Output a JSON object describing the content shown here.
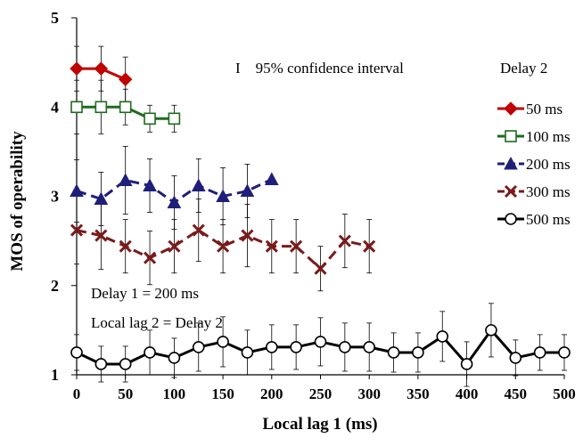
{
  "chart_data": {
    "type": "line",
    "xlabel": "Local lag 1 (ms)",
    "ylabel": "MOS of operability",
    "xlim": [
      0,
      500
    ],
    "ylim": [
      1,
      5
    ],
    "xticks": [
      0,
      50,
      100,
      150,
      200,
      250,
      300,
      350,
      400,
      450,
      500
    ],
    "yticks": [
      1,
      2,
      3,
      4,
      5
    ],
    "grid": false,
    "legend_title": "Delay 2",
    "legend_position": "right",
    "ci_note": "I    95% confidence interval",
    "annotations": [
      "Delay 1 = 200 ms",
      "Local lag 2 = Delay 2"
    ],
    "series": [
      {
        "name": "50 ms",
        "color": "#c00000",
        "marker": "diamond",
        "dash": "solid",
        "x": [
          0,
          25,
          50
        ],
        "y": [
          4.43,
          4.43,
          4.31
        ],
        "ci": [
          0.25,
          0.25,
          0.25
        ]
      },
      {
        "name": "100 ms",
        "color": "#1e6b1e",
        "marker": "square-open",
        "dash": "solid",
        "x": [
          0,
          25,
          50,
          75,
          100
        ],
        "y": [
          4.0,
          4.0,
          4.0,
          3.87,
          3.87
        ],
        "ci": [
          0.3,
          0.3,
          0.2,
          0.15,
          0.15
        ]
      },
      {
        "name": "200 ms",
        "color": "#1f1f7a",
        "marker": "triangle",
        "dash": "dash",
        "x": [
          0,
          25,
          50,
          75,
          100,
          125,
          150,
          175,
          200
        ],
        "y": [
          3.06,
          2.97,
          3.18,
          3.12,
          2.93,
          3.12,
          3.0,
          3.06,
          3.19
        ],
        "ci": [
          0.35,
          0.3,
          0.38,
          0.3,
          0.3,
          0.3,
          0.32,
          0.3,
          0.0
        ]
      },
      {
        "name": "300 ms",
        "color": "#7a1a1a",
        "marker": "x",
        "dash": "dash",
        "x": [
          0,
          25,
          50,
          75,
          100,
          125,
          150,
          175,
          200,
          225,
          250,
          275,
          300
        ],
        "y": [
          2.62,
          2.56,
          2.44,
          2.31,
          2.44,
          2.62,
          2.44,
          2.56,
          2.44,
          2.44,
          2.19,
          2.5,
          2.44
        ],
        "ci": [
          0.38,
          0.38,
          0.3,
          0.3,
          0.3,
          0.35,
          0.3,
          0.35,
          0.3,
          0.3,
          0.25,
          0.3,
          0.3
        ]
      },
      {
        "name": "500 ms",
        "color": "#000000",
        "marker": "circle-open",
        "dash": "solid",
        "x": [
          0,
          25,
          50,
          75,
          100,
          125,
          150,
          175,
          200,
          225,
          250,
          275,
          300,
          325,
          350,
          375,
          400,
          425,
          450,
          475,
          500
        ],
        "y": [
          1.25,
          1.12,
          1.12,
          1.25,
          1.19,
          1.31,
          1.37,
          1.25,
          1.31,
          1.31,
          1.37,
          1.31,
          1.31,
          1.25,
          1.25,
          1.43,
          1.12,
          1.5,
          1.19,
          1.25,
          1.25
        ],
        "ci": [
          0.2,
          0.2,
          0.2,
          0.25,
          0.22,
          0.27,
          0.28,
          0.25,
          0.25,
          0.25,
          0.27,
          0.27,
          0.27,
          0.22,
          0.22,
          0.28,
          0.25,
          0.3,
          0.2,
          0.2,
          0.2
        ]
      }
    ]
  }
}
